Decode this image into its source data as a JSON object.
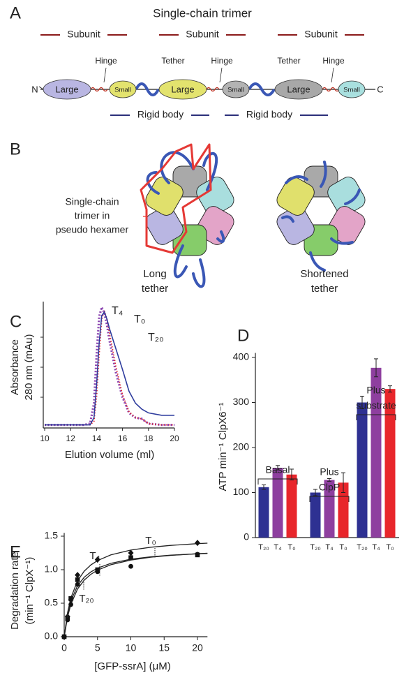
{
  "panel_labels": [
    "A",
    "B",
    "C",
    "D",
    "E"
  ],
  "diagram_a": {
    "title": "Single-chain trimer",
    "subunits": [
      "Subunit",
      "Subunit",
      "Subunit"
    ],
    "hinges": [
      "Hinge",
      "Hinge",
      "Hinge"
    ],
    "tethers": [
      "Tether",
      "Tether"
    ],
    "domains": [
      "Large",
      "Small",
      "Large",
      "Small",
      "Large",
      "Small"
    ],
    "n_terminus": "N",
    "c_terminus": "C",
    "rigid_bodies": [
      "Rigid body",
      "Rigid body"
    ]
  },
  "diagram_b": {
    "callout": [
      "Single-chain",
      "trimer in",
      "pseudo hexamer"
    ],
    "left_caption": [
      "Long",
      "tether"
    ],
    "right_caption": [
      "Shortened",
      "tether"
    ]
  },
  "chart_data": [
    {
      "type": "line",
      "x_label": "Elution volume (ml)",
      "y_label": [
        "Absorbance",
        "280 nm (mAu)"
      ],
      "x": [
        10,
        11,
        12,
        13,
        13.5,
        13.8,
        14,
        14.2,
        14.4,
        14.6,
        14.8,
        15,
        15.5,
        16,
        16.5,
        17,
        17.5,
        18,
        19,
        20
      ],
      "xlim": [
        10,
        20
      ],
      "xticks": [
        10,
        12,
        14,
        16,
        18,
        20
      ],
      "ylim": [
        0,
        100
      ],
      "series": [
        {
          "name": "T₄",
          "color": "#8a44b0",
          "style": "dotted",
          "values": [
            2,
            2,
            2,
            2,
            3,
            20,
            60,
            92,
            100,
            95,
            85,
            72,
            45,
            25,
            12,
            8,
            7,
            3,
            2,
            2
          ]
        },
        {
          "name": "T₀",
          "color": "#e3262d",
          "style": "dotted",
          "values": [
            2,
            2,
            2,
            2,
            2,
            5,
            25,
            60,
            90,
            97,
            90,
            78,
            50,
            27,
            13,
            8,
            7,
            3,
            2,
            2
          ]
        },
        {
          "name": "T₂₀",
          "color": "#2f3d9e",
          "style": "solid",
          "values": [
            2,
            2,
            2,
            2,
            2,
            8,
            35,
            70,
            93,
            96,
            90,
            82,
            65,
            48,
            30,
            20,
            15,
            12,
            10,
            10
          ]
        }
      ]
    },
    {
      "type": "bar",
      "y_label": "ATP min⁻¹ ClpX6⁻¹",
      "categories": [
        [
          "Basal"
        ],
        [
          "Plus",
          "ClpP"
        ],
        [
          "Plus",
          "substrate"
        ]
      ],
      "ylim": [
        0,
        410
      ],
      "yticks": [
        0,
        100,
        200,
        300,
        400
      ],
      "series": [
        {
          "name": "T₂₀",
          "color": "#2e3192",
          "values": [
            112,
            100,
            300
          ],
          "errors": [
            5,
            7,
            14
          ]
        },
        {
          "name": "T₄",
          "color": "#8e3f9f",
          "values": [
            155,
            128,
            377
          ],
          "errors": [
            5,
            3,
            20
          ]
        },
        {
          "name": "T₀",
          "color": "#e8262b",
          "values": [
            140,
            122,
            330
          ],
          "errors": [
            12,
            22,
            7
          ]
        }
      ]
    },
    {
      "type": "scatter",
      "x_label": "[GFP-ssrA] (μM)",
      "y_label": [
        "Degradation rate",
        "(min⁻¹ ClpX⁻¹)"
      ],
      "xlim": [
        0,
        21.5
      ],
      "xticks": [
        0,
        5,
        10,
        15,
        20
      ],
      "ylim": [
        0,
        1.55
      ],
      "yticks": [
        {
          "value": 0,
          "label": "0.0"
        },
        0.5,
        {
          "value": 1,
          "label": "1.0"
        },
        1.5
      ],
      "series": [
        {
          "name": "T₀",
          "marker": "diamond",
          "x": [
            0,
            0.5,
            1,
            2,
            5,
            10,
            20
          ],
          "values": [
            0,
            0.3,
            0.55,
            0.92,
            1.15,
            1.25,
            1.4
          ],
          "fit": {
            "x": [
              0,
              0.5,
              1,
              2,
              3,
              4,
              5,
              7,
              10,
              13,
              16,
              20,
              21.5
            ],
            "values": [
              0,
              0.357,
              0.577,
              0.833,
              0.978,
              1.071,
              1.136,
              1.221,
              1.293,
              1.335,
              1.362,
              1.389,
              1.396
            ]
          }
        },
        {
          "name": "T₄",
          "marker": "square",
          "x": [
            0,
            0.5,
            1,
            2,
            5,
            10,
            20
          ],
          "values": [
            0,
            0.28,
            0.57,
            0.85,
            1.0,
            1.18,
            1.22
          ],
          "fit": {
            "x": [
              0,
              0.5,
              1,
              2,
              3,
              4,
              5,
              7,
              10,
              13,
              16,
              20,
              21.5
            ],
            "values": [
              0,
              0.333,
              0.532,
              0.76,
              0.887,
              0.967,
              1.023,
              1.095,
              1.157,
              1.193,
              1.217,
              1.237,
              1.243
            ]
          }
        },
        {
          "name": "T₂₀",
          "marker": "circle",
          "x": [
            0,
            0.5,
            1,
            2,
            5,
            10,
            20
          ],
          "values": [
            0,
            0.25,
            0.48,
            0.78,
            0.97,
            1.05,
            1.23
          ],
          "fit": {
            "x": [
              0,
              0.5,
              1,
              2,
              3,
              4,
              5,
              7,
              10,
              13,
              16,
              20,
              21.5
            ],
            "values": [
              0,
              0.293,
              0.482,
              0.711,
              0.844,
              0.931,
              0.993,
              1.074,
              1.144,
              1.186,
              1.214,
              1.239,
              1.246
            ]
          }
        }
      ]
    }
  ]
}
